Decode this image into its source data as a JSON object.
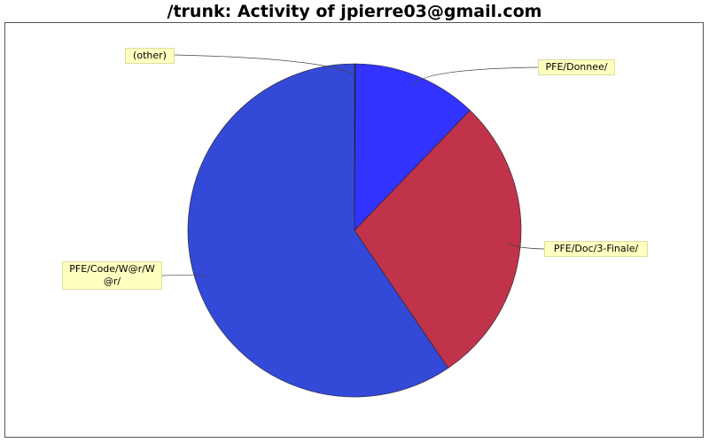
{
  "chart_data": {
    "type": "pie",
    "title": "/trunk: Activity of jpierre03@gmail.com",
    "slices": [
      {
        "label": "(other)",
        "value": 0.1,
        "color": "#3333cc"
      },
      {
        "label": "PFE/Donnee/",
        "value": 12.1,
        "color": "#3333ff"
      },
      {
        "label": "PFE/Doc/3-Finale/",
        "value": 28.3,
        "color": "#c0334a"
      },
      {
        "label": "PFE/Code/W@r/W@r/",
        "value": 59.5,
        "color": "#3349d8"
      }
    ],
    "display_labels": [
      "(other)",
      "PFE/Donnee/",
      "PFE/Doc/3-Finale/",
      "PFE/Code/W@r/W\n@r/"
    ],
    "legend": "none"
  }
}
